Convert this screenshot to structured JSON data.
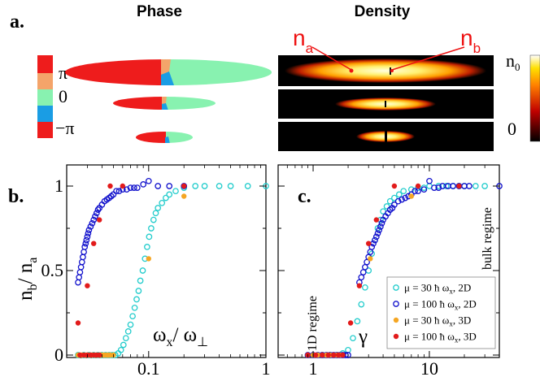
{
  "headers": {
    "a": "a.",
    "b": "b.",
    "c": "c.",
    "phase": "Phase",
    "density": "Density"
  },
  "phase_bar": {
    "pi": "π",
    "zero": "0",
    "minus_pi": "−π",
    "colors": [
      "#ee1c1c",
      "#f4a46a",
      "#88f2b0",
      "#1a9de4",
      "#ee1c1c"
    ]
  },
  "density_bar": {
    "top": "n",
    "top_sub": "0",
    "bottom": "0"
  },
  "density_labels": {
    "na": "n",
    "na_sub": "a",
    "nb": "n",
    "nb_sub": "b",
    "color": "#ee1111"
  },
  "colors": {
    "cyan": "#22cccc",
    "blue": "#1111cc",
    "orange": "#f5a623",
    "red": "#e21b1b"
  },
  "chart_data": [
    {
      "id": "b",
      "type": "scatter",
      "xscale": "log",
      "xlim": [
        0.02,
        1
      ],
      "ylim": [
        0,
        1
      ],
      "xticks": [
        {
          "v": 0.1,
          "label": "0.1"
        },
        {
          "v": 1,
          "label": "1"
        }
      ],
      "yticks": [
        {
          "v": 0,
          "label": "0"
        },
        {
          "v": 0.5,
          "label": "0.5"
        },
        {
          "v": 1,
          "label": "1"
        }
      ],
      "ylabel_main": "n",
      "ylabel_sub1": "b",
      "ylabel_slash": "/ n",
      "ylabel_sub2": "a",
      "xlabel_main": "ω",
      "xlabel_sub1": "x",
      "xlabel_slash": "/ ω",
      "xlabel_sub2": "⊥",
      "series": [
        {
          "name": "blue",
          "style": "hollow",
          "color": "#1111cc",
          "x": [
            0.025,
            0.0255,
            0.026,
            0.0265,
            0.027,
            0.0275,
            0.028,
            0.0285,
            0.029,
            0.0295,
            0.03,
            0.0305,
            0.031,
            0.032,
            0.033,
            0.034,
            0.035,
            0.036,
            0.037,
            0.038,
            0.04,
            0.042,
            0.044,
            0.046,
            0.048,
            0.05,
            0.053,
            0.056,
            0.06,
            0.065,
            0.07,
            0.075,
            0.08,
            0.09,
            0.1,
            0.12,
            0.15,
            0.2
          ],
          "y": [
            0.43,
            0.46,
            0.49,
            0.52,
            0.55,
            0.58,
            0.61,
            0.64,
            0.66,
            0.68,
            0.7,
            0.72,
            0.74,
            0.76,
            0.78,
            0.8,
            0.82,
            0.84,
            0.86,
            0.87,
            0.89,
            0.91,
            0.92,
            0.93,
            0.94,
            0.95,
            0.97,
            0.97,
            0.98,
            0.98,
            0.99,
            0.99,
            0.99,
            1.01,
            1.03,
            1.0,
            1.0,
            1.0
          ]
        },
        {
          "name": "cyan",
          "style": "hollow",
          "color": "#22cccc",
          "x": [
            0.025,
            0.028,
            0.031,
            0.034,
            0.037,
            0.04,
            0.043,
            0.046,
            0.049,
            0.052,
            0.055,
            0.058,
            0.061,
            0.064,
            0.067,
            0.07,
            0.073,
            0.076,
            0.079,
            0.082,
            0.085,
            0.089,
            0.093,
            0.097,
            0.101,
            0.105,
            0.11,
            0.115,
            0.12,
            0.13,
            0.14,
            0.15,
            0.17,
            0.2,
            0.25,
            0.3,
            0.4,
            0.5,
            0.7,
            1.0
          ],
          "y": [
            0,
            0,
            0,
            0,
            0,
            0,
            0,
            0,
            0,
            0,
            0.01,
            0.03,
            0.06,
            0.1,
            0.14,
            0.18,
            0.23,
            0.28,
            0.33,
            0.38,
            0.44,
            0.5,
            0.57,
            0.64,
            0.7,
            0.75,
            0.8,
            0.84,
            0.87,
            0.9,
            0.93,
            0.95,
            0.97,
            0.99,
            1.0,
            1.0,
            1.0,
            1.0,
            1.0,
            1.0
          ]
        },
        {
          "name": "orange",
          "style": "filled",
          "color": "#f5a623",
          "x": [
            0.025,
            0.027,
            0.029,
            0.031,
            0.033,
            0.035,
            0.037,
            0.039,
            0.041,
            0.043,
            0.045,
            0.047,
            0.05,
            0.1,
            0.2
          ],
          "y": [
            0,
            0,
            0,
            0,
            0,
            0,
            0,
            0,
            0,
            0,
            0,
            0,
            0,
            0.57,
            0.94
          ]
        },
        {
          "name": "red",
          "style": "filled",
          "color": "#e21b1b",
          "x": [
            0.025,
            0.026,
            0.028,
            0.03,
            0.032,
            0.034,
            0.036,
            0.038,
            0.03,
            0.034,
            0.038,
            0.047,
            0.06,
            0.2
          ],
          "y": [
            0.19,
            0,
            0,
            0,
            0,
            0,
            0,
            0,
            0.41,
            0.66,
            0.8,
            1.0,
            1.0,
            1.0
          ]
        }
      ]
    },
    {
      "id": "c",
      "type": "scatter",
      "xscale": "log",
      "xlim": [
        0.5,
        40
      ],
      "ylim": [
        0,
        1
      ],
      "xticks": [
        {
          "v": 1,
          "label": "1"
        },
        {
          "v": 10,
          "label": "10"
        }
      ],
      "yticks": [],
      "xlabel": "γ",
      "annotation_left": "1D regime",
      "annotation_right": "bulk regime",
      "legend": [
        {
          "series": "cyan",
          "label": "μ = 30 ħ ω",
          "sub": "x",
          "tail": ", 2D"
        },
        {
          "series": "blue",
          "label": "μ = 100 ħ ω",
          "sub": "x",
          "tail": ", 2D"
        },
        {
          "series": "orange",
          "label": "μ = 30 ħ ω",
          "sub": "x",
          "tail": ", 3D"
        },
        {
          "series": "red",
          "label": "μ = 100 ħ ω",
          "sub": "x",
          "tail": ", 3D"
        }
      ],
      "series": [
        {
          "name": "blue",
          "style": "hollow",
          "color": "#1111cc",
          "x": [
            0.9,
            1.0,
            1.1,
            1.2,
            1.3,
            1.4,
            1.5,
            1.6,
            1.7,
            1.8,
            1.9,
            2.0,
            2.5,
            2.6,
            2.7,
            2.8,
            2.9,
            3.0,
            3.1,
            3.2,
            3.3,
            3.4,
            3.5,
            3.6,
            3.7,
            3.8,
            3.9,
            4.0,
            4.2,
            4.4,
            4.6,
            4.8,
            5.0,
            5.4,
            5.8,
            6.2,
            6.6,
            7.0,
            7.5,
            8.0,
            9.0,
            10.0,
            11.0,
            12.0,
            13.0,
            14.5,
            16.0,
            18.0,
            20.0,
            22.0,
            40.0
          ],
          "y": [
            0,
            0,
            0,
            0,
            0,
            0,
            0,
            0.0,
            0.0,
            0.0,
            0.0,
            0.0,
            0.43,
            0.46,
            0.49,
            0.52,
            0.55,
            0.58,
            0.61,
            0.64,
            0.66,
            0.68,
            0.7,
            0.72,
            0.74,
            0.76,
            0.78,
            0.8,
            0.82,
            0.84,
            0.86,
            0.87,
            0.89,
            0.91,
            0.92,
            0.93,
            0.94,
            0.95,
            0.97,
            0.97,
            0.98,
            1.03,
            0.99,
            0.99,
            1.0,
            1.0,
            1.0,
            1.0,
            1.0,
            1.0,
            1.0
          ]
        },
        {
          "name": "cyan",
          "style": "hollow",
          "color": "#22cccc",
          "x": [
            1.2,
            1.4,
            1.6,
            1.8,
            2.0,
            2.2,
            2.4,
            2.6,
            2.8,
            3.0,
            3.2,
            3.4,
            3.6,
            3.8,
            4.0,
            4.3,
            4.6,
            5.0,
            5.5,
            6.0,
            7.0,
            8.0,
            9.0,
            10.0,
            12.0,
            14.0,
            16.0,
            18.0,
            20.0,
            25.0,
            30.0
          ],
          "y": [
            0,
            0,
            0,
            0.01,
            0.03,
            0.1,
            0.2,
            0.3,
            0.4,
            0.5,
            0.6,
            0.68,
            0.75,
            0.8,
            0.85,
            0.88,
            0.91,
            0.93,
            0.95,
            0.97,
            0.98,
            0.99,
            0.99,
            1.0,
            1.0,
            1.0,
            1.0,
            1.0,
            1.0,
            1.0,
            1.0
          ]
        },
        {
          "name": "orange",
          "style": "filled",
          "color": "#f5a623",
          "x": [
            0.9,
            1.0,
            1.1,
            1.2,
            1.3,
            1.4,
            1.5,
            1.6,
            1.7,
            3.1,
            7.0
          ],
          "y": [
            0,
            0,
            0,
            0,
            0,
            0,
            0,
            0,
            0,
            0.57,
            0.94
          ]
        },
        {
          "name": "red",
          "style": "filled",
          "color": "#e21b1b",
          "x": [
            0.9,
            1.05,
            1.2,
            1.35,
            1.5,
            1.65,
            1.8,
            2.1,
            2.5,
            3.0,
            3.5,
            5.0,
            8.0,
            18.0
          ],
          "y": [
            0,
            0,
            0,
            0,
            0,
            0,
            0,
            0.19,
            0.41,
            0.66,
            0.8,
            1.0,
            1.0,
            1.0
          ]
        }
      ]
    }
  ]
}
